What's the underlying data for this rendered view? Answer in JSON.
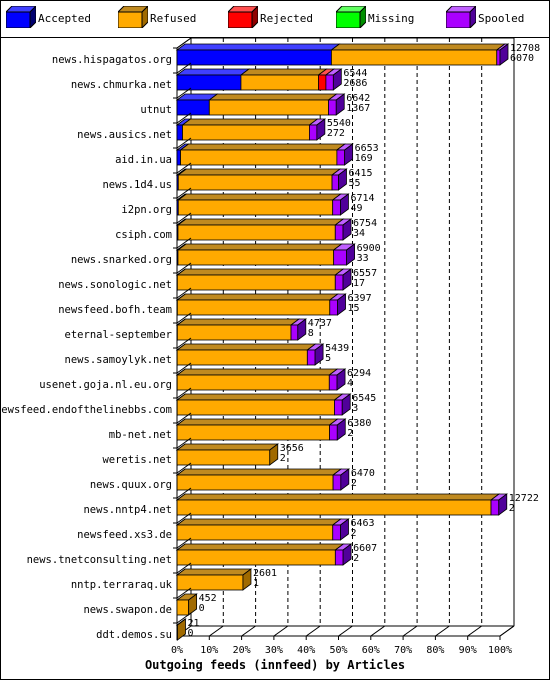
{
  "legend": [
    {
      "name": "Accepted",
      "color": "#0000ff",
      "side": "#000070",
      "top": "#4040ff"
    },
    {
      "name": "Refused",
      "color": "#ffaa00",
      "side": "#a06a00",
      "top": "#c08a20"
    },
    {
      "name": "Rejected",
      "color": "#ff0000",
      "side": "#900000",
      "top": "#ff5050"
    },
    {
      "name": "Missing",
      "color": "#00ff00",
      "side": "#009000",
      "top": "#60ff60"
    },
    {
      "name": "Spooled",
      "color": "#aa00ff",
      "side": "#50009a",
      "top": "#c060ff"
    }
  ],
  "chart_data": {
    "type": "bar",
    "orientation": "horizontal",
    "stacked": true,
    "xlabel": "Outgoing feeds (innfeed) by Articles",
    "xlim": [
      0,
      100
    ],
    "x_ticks": [
      "0%",
      "10%",
      "20%",
      "30%",
      "40%",
      "50%",
      "60%",
      "70%",
      "80%",
      "90%",
      "100%"
    ],
    "grid": true,
    "series_names": [
      "Accepted",
      "Refused",
      "Rejected",
      "Missing",
      "Spooled"
    ],
    "rows": [
      {
        "label": "news.hispagatos.org",
        "offered": "12708",
        "accepted": "6070",
        "pct": [
          47.8,
          51.2,
          0,
          0,
          1.0
        ]
      },
      {
        "label": "news.chmurka.net",
        "offered": "6544",
        "accepted": "2686",
        "pct": [
          19.8,
          24.0,
          2.3,
          0,
          2.3
        ]
      },
      {
        "label": "utnut",
        "offered": "6642",
        "accepted": "1367",
        "pct": [
          10.0,
          36.9,
          0,
          0,
          2.4
        ]
      },
      {
        "label": "news.ausics.net",
        "offered": "5540",
        "accepted": "272",
        "pct": [
          1.7,
          39.3,
          0,
          0,
          2.3
        ]
      },
      {
        "label": "aid.in.ua",
        "offered": "6653",
        "accepted": "169",
        "pct": [
          1.1,
          48.4,
          0,
          0,
          2.4
        ]
      },
      {
        "label": "news.1d4.us",
        "offered": "6415",
        "accepted": "55",
        "pct": [
          0.4,
          47.6,
          0,
          0,
          2.0
        ]
      },
      {
        "label": "i2pn.org",
        "offered": "6714",
        "accepted": "49",
        "pct": [
          0.4,
          47.8,
          0,
          0,
          2.4
        ]
      },
      {
        "label": "csiph.com",
        "offered": "6754",
        "accepted": "34",
        "pct": [
          0.3,
          48.7,
          0,
          0,
          2.4
        ]
      },
      {
        "label": "news.snarked.org",
        "offered": "6900",
        "accepted": "33",
        "pct": [
          0.3,
          48.2,
          0,
          0,
          4.0
        ]
      },
      {
        "label": "news.sonologic.net",
        "offered": "6557",
        "accepted": "17",
        "pct": [
          0.1,
          48.9,
          0,
          0,
          2.4
        ]
      },
      {
        "label": "newsfeed.bofh.team",
        "offered": "6397",
        "accepted": "15",
        "pct": [
          0.1,
          47.2,
          0,
          0,
          2.4
        ]
      },
      {
        "label": "eternal-september",
        "offered": "4737",
        "accepted": "8",
        "pct": [
          0.1,
          35.2,
          0,
          0,
          2.1
        ]
      },
      {
        "label": "news.samoylyk.net",
        "offered": "5439",
        "accepted": "5",
        "pct": [
          0.05,
          40.3,
          0,
          0,
          2.4
        ]
      },
      {
        "label": "usenet.goja.nl.eu.org",
        "offered": "6294",
        "accepted": "4",
        "pct": [
          0.05,
          47.1,
          0,
          0,
          2.4
        ]
      },
      {
        "label": "newsfeed.endofthelinebbs.com",
        "offered": "6545",
        "accepted": "3",
        "pct": [
          0.05,
          48.7,
          0,
          0,
          2.4
        ]
      },
      {
        "label": "mb-net.net",
        "offered": "6380",
        "accepted": "2",
        "pct": [
          0.02,
          47.2,
          0,
          0,
          2.4
        ]
      },
      {
        "label": "weretis.net",
        "offered": "3656",
        "accepted": "2",
        "pct": [
          0.02,
          28.7,
          0,
          0,
          0
        ]
      },
      {
        "label": "news.quux.org",
        "offered": "6470",
        "accepted": "2",
        "pct": [
          0.02,
          48.3,
          0,
          0,
          2.4
        ]
      },
      {
        "label": "news.nntp4.net",
        "offered": "12722",
        "accepted": "2",
        "pct": [
          0.02,
          97.2,
          0,
          0,
          2.4
        ]
      },
      {
        "label": "newsfeed.xs3.de",
        "offered": "6463",
        "accepted": "2",
        "pct": [
          0.02,
          48.2,
          0,
          0,
          2.4
        ]
      },
      {
        "label": "news.tnetconsulting.net",
        "offered": "6607",
        "accepted": "2",
        "pct": [
          0.02,
          49.0,
          0,
          0,
          2.4
        ]
      },
      {
        "label": "nntp.terraraq.uk",
        "offered": "2601",
        "accepted": "1",
        "pct": [
          0.02,
          20.4,
          0,
          0,
          0
        ]
      },
      {
        "label": "news.swapon.de",
        "offered": "452",
        "accepted": "0",
        "pct": [
          0,
          3.6,
          0,
          0,
          0
        ]
      },
      {
        "label": "ddt.demos.su",
        "offered": "21",
        "accepted": "0",
        "pct": [
          0,
          0.15,
          0,
          0,
          0
        ]
      }
    ]
  }
}
